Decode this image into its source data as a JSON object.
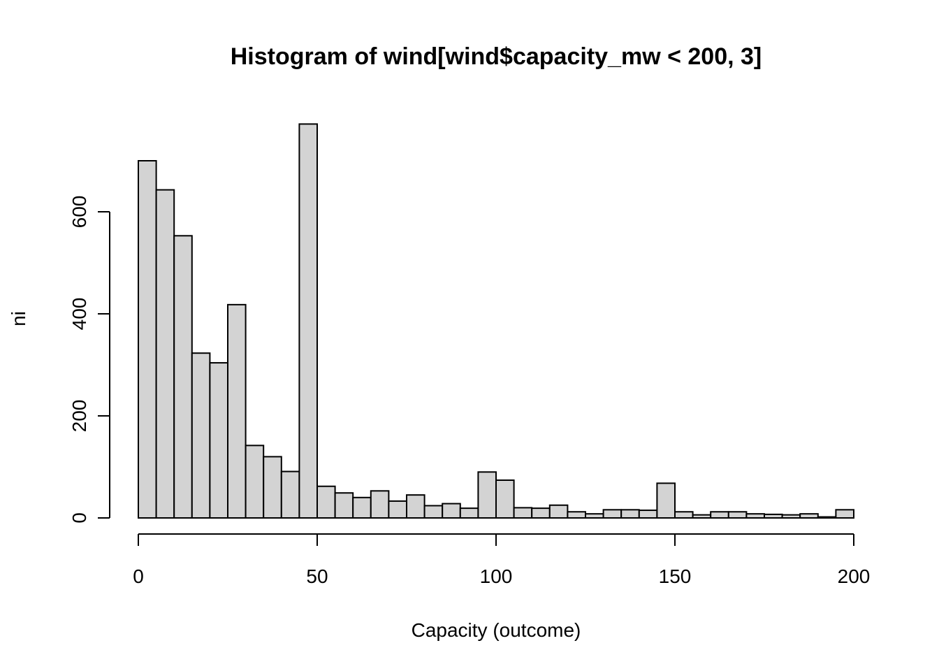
{
  "chart_data": {
    "type": "bar",
    "title": "Histogram of wind[wind$capacity_mw < 200, 3]",
    "xlabel": "Capacity (outcome)",
    "ylabel": "ni",
    "xlim": [
      0,
      200
    ],
    "ylim": [
      0,
      780
    ],
    "x_ticks": [
      0,
      50,
      100,
      150,
      200
    ],
    "y_ticks": [
      0,
      200,
      400,
      600
    ],
    "bin_width": 5,
    "bin_starts": [
      0,
      5,
      10,
      15,
      20,
      25,
      30,
      35,
      40,
      45,
      50,
      55,
      60,
      65,
      70,
      75,
      80,
      85,
      90,
      95,
      100,
      105,
      110,
      115,
      120,
      125,
      130,
      135,
      140,
      145,
      150,
      155,
      160,
      165,
      170,
      175,
      180,
      185,
      190,
      195
    ],
    "values": [
      700,
      643,
      553,
      323,
      304,
      418,
      142,
      120,
      91,
      772,
      62,
      49,
      40,
      53,
      33,
      45,
      24,
      28,
      19,
      90,
      74,
      20,
      19,
      25,
      12,
      8,
      16,
      16,
      15,
      68,
      12,
      6,
      12,
      12,
      8,
      7,
      6,
      8,
      2,
      16
    ],
    "bar_color": "#d3d3d3",
    "grid": false
  }
}
